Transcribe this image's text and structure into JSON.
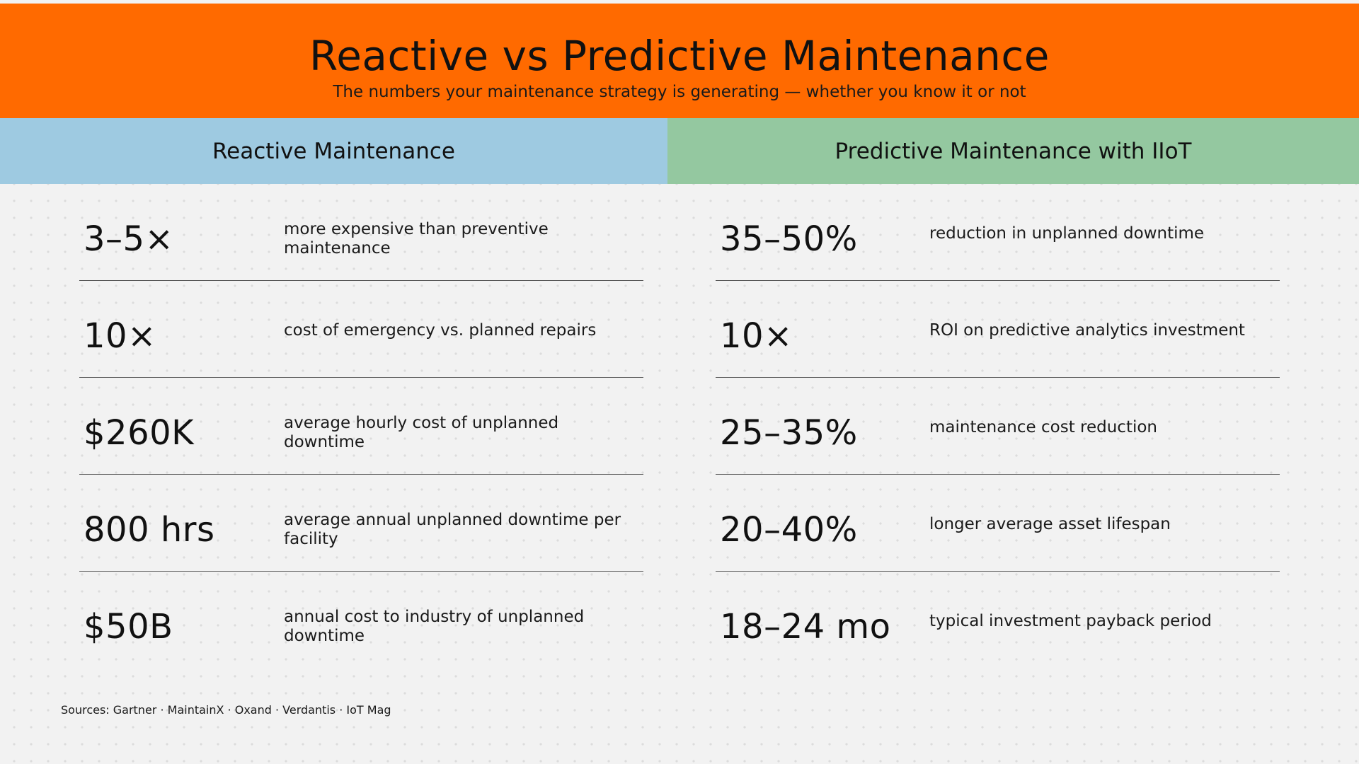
{
  "header": {
    "title": "Reactive vs Predictive Maintenance",
    "subtitle": "The numbers your maintenance strategy is generating — whether you know it or not"
  },
  "reactive": {
    "heading": "Reactive Maintenance",
    "stats": [
      {
        "value": "3–5×",
        "desc": "more expensive than preventive maintenance"
      },
      {
        "value": "10×",
        "desc": "cost of emergency vs. planned repairs"
      },
      {
        "value": "$260K",
        "desc": "average hourly cost of unplanned downtime"
      },
      {
        "value": "800 hrs",
        "desc": "average annual unplanned downtime per facility"
      },
      {
        "value": "$50B",
        "desc": "annual cost to industry of unplanned downtime"
      }
    ]
  },
  "predictive": {
    "heading": "Predictive Maintenance with IIoT",
    "stats": [
      {
        "value": "35–50%",
        "desc": "reduction in unplanned downtime"
      },
      {
        "value": "10×",
        "desc": "ROI on predictive analytics investment"
      },
      {
        "value": "25–35%",
        "desc": "maintenance cost reduction"
      },
      {
        "value": "20–40%",
        "desc": "longer average asset lifespan"
      },
      {
        "value": "18–24 mo",
        "desc": "typical investment payback period"
      }
    ]
  },
  "sources": "Sources: Gartner · MaintainX · Oxand · Verdantis · IoT Mag",
  "colors": {
    "header_bg": "#ff6a00",
    "reactive_bg": "#9ecae1",
    "predictive_bg": "#94c8a0",
    "page_bg": "#f2f2f2"
  }
}
